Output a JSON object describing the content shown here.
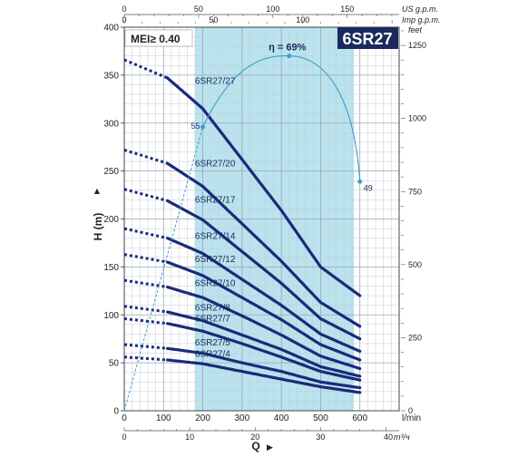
{
  "chart_data": {
    "type": "line",
    "title": "6SR27",
    "mei": "MEI≥ 0.40",
    "xlabel": "Q",
    "ylabel": "H (m)",
    "x_main": {
      "unit": "l/min",
      "ticks": [
        0,
        100,
        200,
        300,
        400,
        500,
        600
      ],
      "range": [
        0,
        700
      ]
    },
    "x_bottom": {
      "unit": "m³/ч",
      "ticks": [
        0,
        10,
        20,
        30,
        40
      ],
      "max_label": "40"
    },
    "x_top_us": {
      "unit": "US g.p.m.",
      "ticks": [
        0,
        50,
        100,
        150
      ]
    },
    "x_top_imp": {
      "unit": "Imp g.p.m.",
      "ticks": [
        0,
        50,
        100
      ]
    },
    "y_left": {
      "unit": "m",
      "ticks": [
        0,
        50,
        100,
        150,
        200,
        250,
        300,
        350,
        400
      ],
      "range": [
        0,
        400
      ]
    },
    "y_right": {
      "unit": "feet",
      "ticks": [
        0,
        250,
        500,
        750,
        1000,
        1250
      ]
    },
    "operating_range": [
      180,
      585
    ],
    "dashed_range": [
      0,
      110
    ],
    "series": [
      {
        "name": "6SR27/27",
        "x": [
          0,
          110,
          200,
          300,
          400,
          500,
          600
        ],
        "y": [
          366,
          347,
          315,
          262,
          209,
          150,
          120
        ]
      },
      {
        "name": "6SR27/20",
        "x": [
          0,
          110,
          200,
          300,
          400,
          500,
          600
        ],
        "y": [
          272,
          258,
          234,
          195,
          156,
          113,
          88
        ]
      },
      {
        "name": "6SR27/17",
        "x": [
          0,
          110,
          200,
          300,
          400,
          500,
          600
        ],
        "y": [
          231,
          219,
          199,
          166,
          133,
          96,
          75
        ]
      },
      {
        "name": "6SR27/14",
        "x": [
          0,
          110,
          200,
          300,
          400,
          500,
          600
        ],
        "y": [
          190,
          180,
          164,
          137,
          110,
          80,
          62
        ]
      },
      {
        "name": "6SR27/12",
        "x": [
          0,
          110,
          200,
          300,
          400,
          500,
          600
        ],
        "y": [
          163,
          155,
          141,
          118,
          95,
          69,
          53
        ]
      },
      {
        "name": "6SR27/10",
        "x": [
          0,
          110,
          200,
          300,
          400,
          500,
          600
        ],
        "y": [
          136,
          129,
          118,
          99,
          79,
          57,
          44
        ]
      },
      {
        "name": "6SR27/8",
        "x": [
          0,
          110,
          200,
          300,
          400,
          500,
          600
        ],
        "y": [
          109,
          103,
          94,
          79,
          64,
          46,
          36
        ]
      },
      {
        "name": "6SR27/7",
        "x": [
          0,
          110,
          200,
          300,
          400,
          500,
          600
        ],
        "y": [
          96,
          91,
          83,
          70,
          56,
          41,
          32
        ]
      },
      {
        "name": "6SR27/5",
        "x": [
          0,
          110,
          200,
          300,
          400,
          500,
          600
        ],
        "y": [
          69,
          65,
          60,
          50,
          41,
          30,
          24
        ]
      },
      {
        "name": "6SR27/4",
        "x": [
          0,
          110,
          200,
          300,
          400,
          500,
          600
        ],
        "y": [
          56,
          53,
          49,
          41,
          33,
          25,
          19
        ]
      }
    ],
    "efficiency": {
      "label": "η = 69%",
      "peak": 69,
      "points": [
        {
          "x": 200,
          "y": 296,
          "label": "55"
        },
        {
          "x": 420,
          "y": 370,
          "label": ""
        },
        {
          "x": 600,
          "y": 239,
          "label": "49"
        }
      ]
    }
  }
}
